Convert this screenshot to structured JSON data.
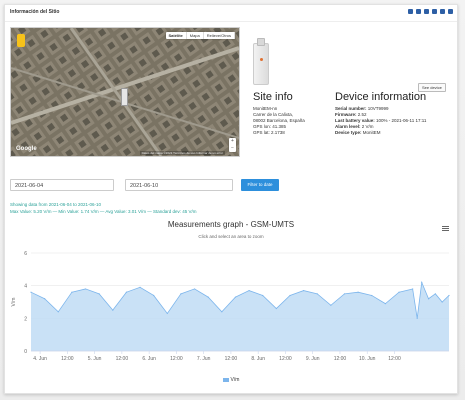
{
  "header": {
    "title": "Información del Sitio",
    "icons": [
      "facebook-icon",
      "twitter-icon",
      "linkedin-icon",
      "instagram-icon",
      "pinterest-icon",
      "share-icon"
    ]
  },
  "map": {
    "tabs": [
      "Satélite",
      "Mapa",
      "Relieve/Otros"
    ],
    "active_tab": "Satélite",
    "google_label": "Google",
    "credit": "Datos del mapa ©2021  Términos de uso  Informar de un error"
  },
  "site_info": {
    "title": "Site info",
    "rows": [
      "MonitEM-nn",
      "Carrer de la Calixta,",
      "08002 Barcelona, España",
      "GPS lon: 41.385",
      "GPS lat: 2.1738"
    ]
  },
  "device_info": {
    "title": "Device information",
    "see_button": "See device",
    "rows": [
      {
        "label": "Serial number:",
        "value": "10VT9999"
      },
      {
        "label": "Firmware:",
        "value": "2.52"
      },
      {
        "label": "Last battery value:",
        "value": "100% - 2021-06-11 17:11"
      },
      {
        "label": "Alarm level:",
        "value": "2 V/m"
      },
      {
        "label": "Device type:",
        "value": "MonitEM"
      }
    ]
  },
  "filter": {
    "date_from": "2021-06-04",
    "date_to": "2021-06-10",
    "button_label": "Filter to date"
  },
  "summary": {
    "line1": "Showing data from 2021-06-04 to 2021-06-10",
    "line2": "Max Value: 5.20 V/m  —  Min Value: 1.74 V/m  —  Avg Value: 3.01 V/m  —  Standard dev: 45 V/m"
  },
  "chart_data": {
    "type": "area",
    "title": "Measurements graph - GSM-UMTS",
    "subtitle": "Click and select an area to zoom",
    "ylabel": "V/m",
    "ylim": [
      0,
      6
    ],
    "yticks": [
      0,
      2,
      4,
      6
    ],
    "xticks": [
      "4. Jun",
      "12:00",
      "5. Jun",
      "12:00",
      "6. Jun",
      "12:00",
      "7. Jun",
      "12:00",
      "8. Jun",
      "12:00",
      "9. Jun",
      "12:00",
      "10. Jun",
      "12:00"
    ],
    "x_hours": [
      0,
      6,
      12,
      18,
      24,
      30,
      36,
      42,
      48,
      54,
      60,
      66,
      72,
      78,
      84,
      90,
      96,
      102,
      108,
      114,
      120,
      126,
      132,
      138,
      144,
      150,
      156,
      162,
      168,
      170,
      172,
      175,
      178,
      181,
      184
    ],
    "values": [
      3.6,
      3.2,
      2.4,
      3.6,
      3.8,
      3.5,
      2.5,
      3.6,
      3.9,
      3.4,
      2.3,
      3.5,
      3.8,
      3.3,
      2.4,
      3.3,
      3.7,
      3.4,
      2.6,
      3.4,
      3.7,
      3.5,
      2.8,
      3.5,
      3.6,
      3.4,
      2.9,
      3.6,
      3.8,
      2.0,
      4.2,
      3.2,
      3.5,
      3.0,
      3.4
    ],
    "series": [
      {
        "name": "V/m",
        "color": "#7cb5ec"
      }
    ],
    "grid": true,
    "legend": "bottom-center"
  }
}
